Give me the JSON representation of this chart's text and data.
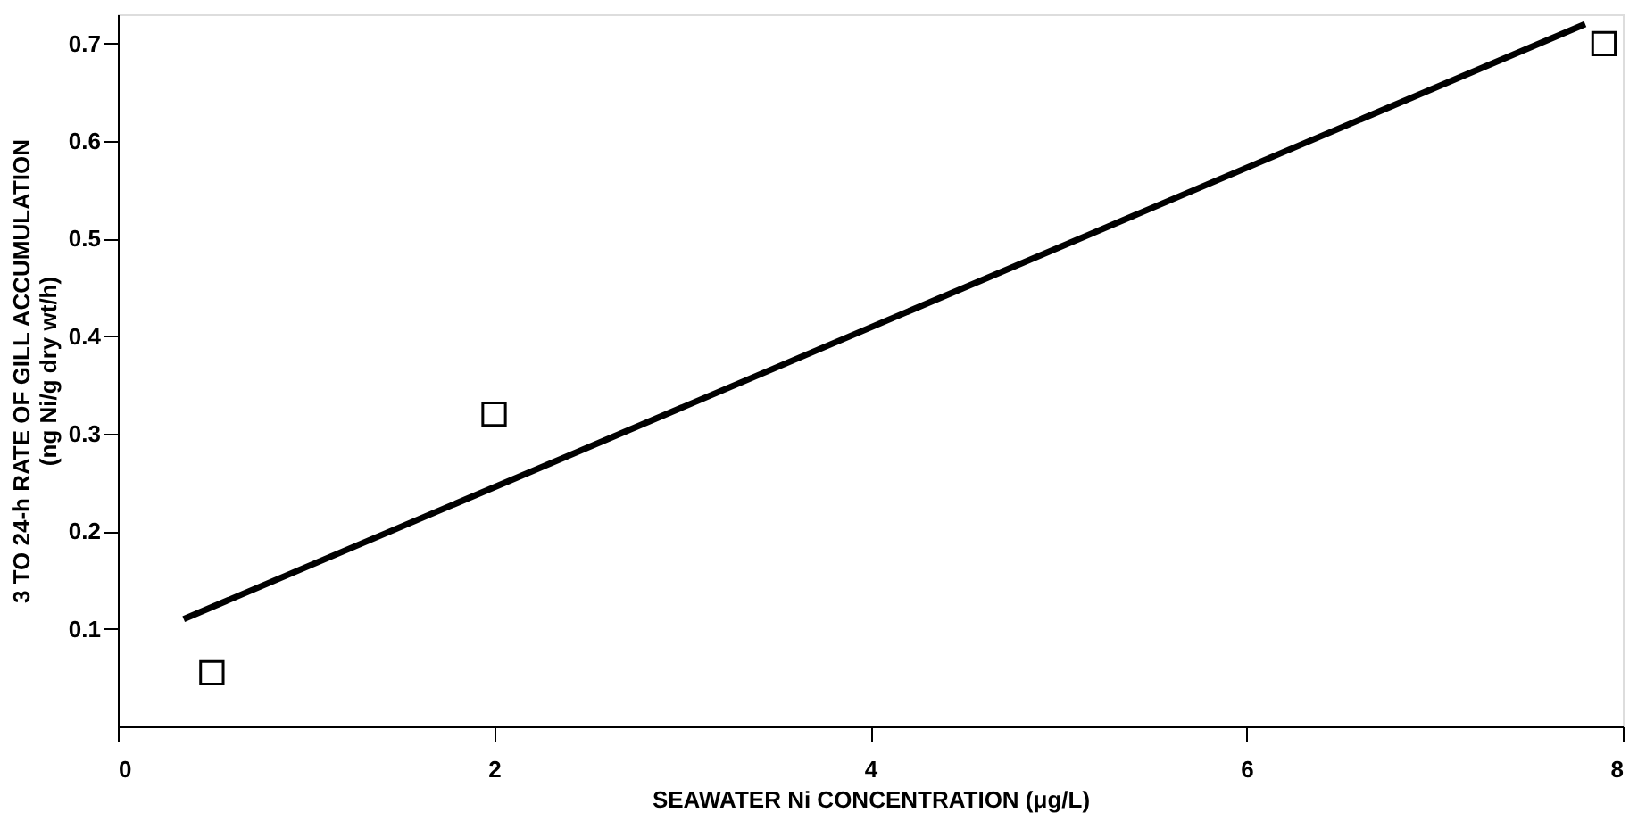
{
  "chart_data": {
    "type": "scatter",
    "xlabel": "SEAWATER Ni CONCENTRATION (μg/L)",
    "ylabel": [
      "3 TO 24-h RATE OF GILL ACCUMULATION",
      "(ng Ni/g dry wt/h)"
    ],
    "xlim": [
      0,
      8
    ],
    "ylim": [
      0,
      0.73
    ],
    "xticks": [
      0,
      2,
      4,
      6,
      8
    ],
    "yticks": [
      0.1,
      0.2,
      0.3,
      0.4,
      0.5,
      0.6,
      0.7
    ],
    "grid": false,
    "series": [
      {
        "marker": "square",
        "color": "#000000",
        "x": [
          0.5,
          2,
          7.9
        ],
        "values": [
          0.055,
          0.32,
          0.7
        ]
      },
      {
        "type": "line",
        "color": "#000000",
        "x": [
          0.35,
          7.8
        ],
        "values": [
          0.11,
          0.72
        ]
      }
    ]
  }
}
